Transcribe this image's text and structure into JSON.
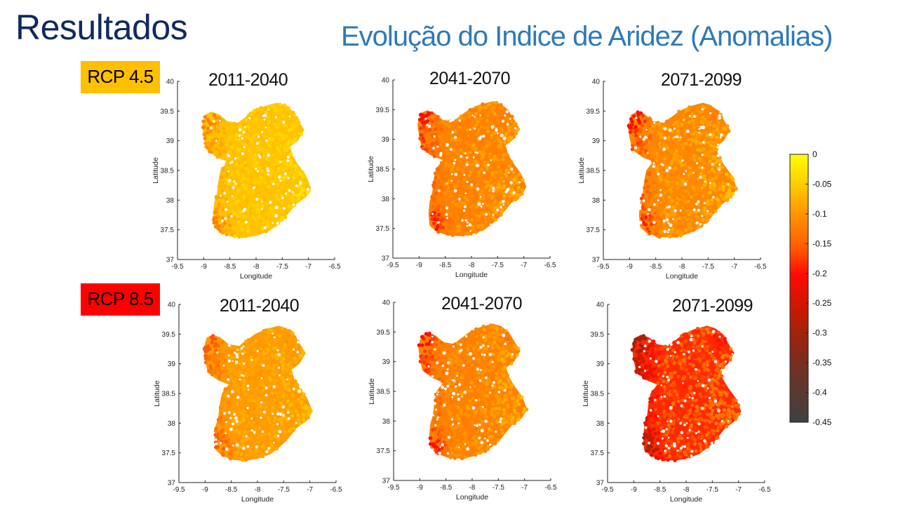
{
  "slide": {
    "title": "Resultados",
    "subtitle": "Evolução do Indice de Aridez (Anomalias)"
  },
  "scenarios": [
    {
      "label": "RCP 4.5",
      "color": "#ffc000"
    },
    {
      "label": "RCP 8.5",
      "color": "#ff0000"
    }
  ],
  "chart_data": [
    {
      "type": "scatter",
      "scenario": "RCP 4.5",
      "title": "2011-2040",
      "xlabel": "Longitude",
      "ylabel": "Latitude",
      "xlim": [
        -9.5,
        -6.5
      ],
      "ylim": [
        37,
        40
      ],
      "xticks": [
        "-9.5",
        "-9",
        "-8.5",
        "-8",
        "-7.5",
        "-7",
        "-6.5"
      ],
      "yticks": [
        "37",
        "37.5",
        "38",
        "38.5",
        "39",
        "39.5",
        "40"
      ],
      "anomaly_range": [
        -0.12,
        -0.02
      ],
      "intensity": 0.25
    },
    {
      "type": "scatter",
      "scenario": "RCP 4.5",
      "title": "2041-2070",
      "xlabel": "Longitude",
      "ylabel": "Latitude",
      "xlim": [
        -9.5,
        -6.5
      ],
      "ylim": [
        37,
        40
      ],
      "xticks": [
        "-9.5",
        "-9",
        "-8.5",
        "-8",
        "-7.5",
        "-7",
        "-6.5"
      ],
      "yticks": [
        "37",
        "37.5",
        "38",
        "38.5",
        "39",
        "39.5",
        "40"
      ],
      "anomaly_range": [
        -0.2,
        -0.06
      ],
      "intensity": 0.5
    },
    {
      "type": "scatter",
      "scenario": "RCP 4.5",
      "title": "2071-2099",
      "xlabel": "Longitude",
      "ylabel": "Latitude",
      "xlim": [
        -9.5,
        -6.5
      ],
      "ylim": [
        37,
        40
      ],
      "xticks": [
        "-9.5",
        "-9",
        "-8.5",
        "-8",
        "-7.5",
        "-7",
        "-6.5"
      ],
      "yticks": [
        "37",
        "37.5",
        "38",
        "38.5",
        "39",
        "39.5",
        "40"
      ],
      "anomaly_range": [
        -0.2,
        -0.05
      ],
      "intensity": 0.45
    },
    {
      "type": "scatter",
      "scenario": "RCP 8.5",
      "title": "2011-2040",
      "xlabel": "Longitude",
      "ylabel": "Latitude",
      "xlim": [
        -9.5,
        -6.5
      ],
      "ylim": [
        37,
        40
      ],
      "xticks": [
        "-9.5",
        "-9",
        "-8.5",
        "-8",
        "-7.5",
        "-7",
        "-6.5"
      ],
      "yticks": [
        "37",
        "37.5",
        "38",
        "38.5",
        "39",
        "39.5",
        "40"
      ],
      "anomaly_range": [
        -0.16,
        -0.05
      ],
      "intensity": 0.42
    },
    {
      "type": "scatter",
      "scenario": "RCP 8.5",
      "title": "2041-2070",
      "xlabel": "Longitude",
      "ylabel": "Latitude",
      "xlim": [
        -9.5,
        -6.5
      ],
      "ylim": [
        37,
        40
      ],
      "xticks": [
        "-9.5",
        "-9",
        "-8.5",
        "-8",
        "-7.5",
        "-7",
        "-6.5"
      ],
      "yticks": [
        "37",
        "37.5",
        "38",
        "38.5",
        "39",
        "39.5",
        "40"
      ],
      "anomaly_range": [
        -0.2,
        -0.06
      ],
      "intensity": 0.5
    },
    {
      "type": "scatter",
      "scenario": "RCP 8.5",
      "title": "2071-2099",
      "xlabel": "Longitude",
      "ylabel": "Latitude",
      "xlim": [
        -9.5,
        -6.5
      ],
      "ylim": [
        37,
        40
      ],
      "xticks": [
        "-9.5",
        "-9",
        "-8.5",
        "-8",
        "-7.5",
        "-7",
        "-6.5"
      ],
      "yticks": [
        "37",
        "37.5",
        "38",
        "38.5",
        "39",
        "39.5",
        "40"
      ],
      "anomaly_range": [
        -0.3,
        -0.09
      ],
      "intensity": 0.72
    }
  ],
  "colorbar": {
    "range": [
      -0.45,
      0
    ],
    "tick_labels": [
      "0",
      "-0.05",
      "-0.1",
      "-0.15",
      "-0.2",
      "-0.25",
      "-0.3",
      "-0.35",
      "-0.4",
      "-0.45"
    ],
    "colors": [
      "#ffff00",
      "#ffc000",
      "#ff8c00",
      "#ff4500",
      "#ff0000",
      "#c41a00",
      "#8a2a16",
      "#4a3a36"
    ]
  }
}
